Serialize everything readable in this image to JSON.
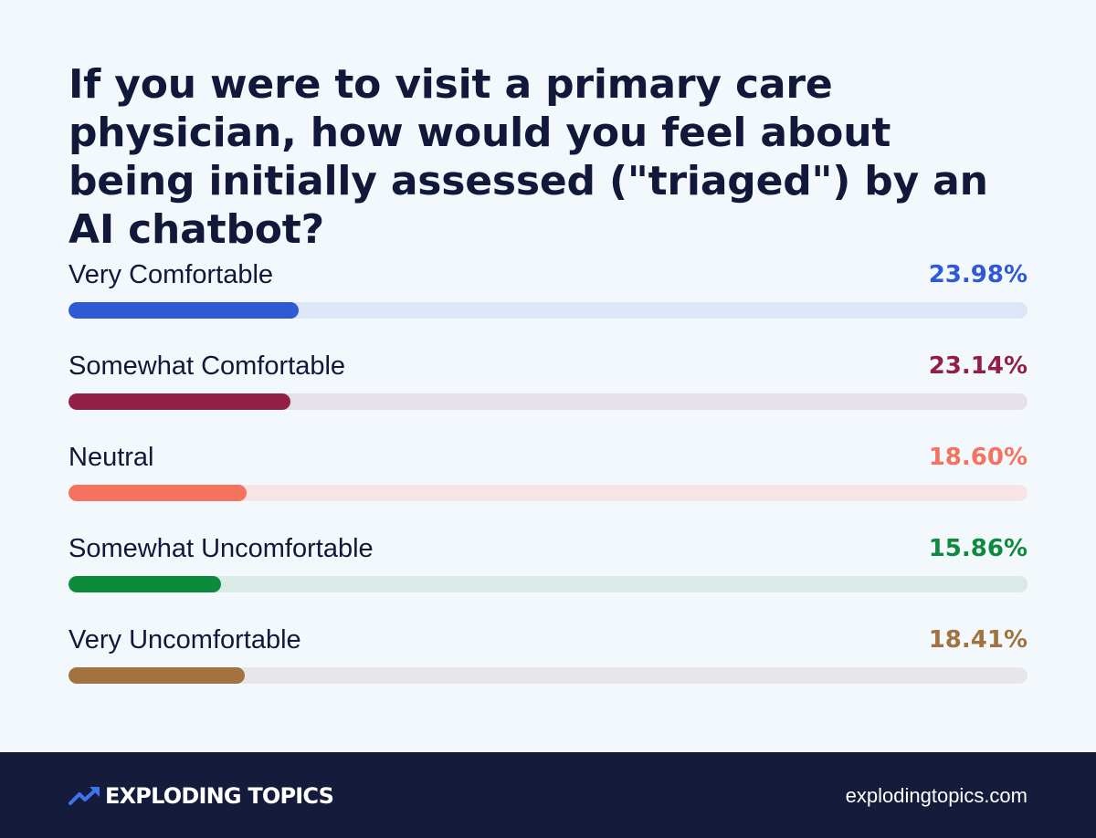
{
  "chart_data": {
    "type": "bar",
    "title": "If you were to visit a primary care physician, how would you feel about being initially assessed (\"triaged\") by an AI chatbot?",
    "xlim": [
      0,
      100
    ],
    "categories": [
      "Very Comfortable",
      "Somewhat Comfortable",
      "Neutral",
      "Somewhat Uncomfortable",
      "Very Uncomfortable"
    ],
    "values": [
      23.98,
      23.14,
      18.6,
      15.86,
      18.41
    ],
    "value_labels": [
      "23.98%",
      "23.14%",
      "18.60%",
      "15.86%",
      "18.41%"
    ],
    "colors": [
      "#2e5ad6",
      "#921f46",
      "#f5725f",
      "#0e8a3d",
      "#a2733f"
    ],
    "track_colors": [
      "#dce6f6",
      "#e5e1e8",
      "#f7e5e6",
      "#d9ebe6",
      "#e7e7ea"
    ]
  },
  "footer": {
    "brand": "EXPLODING TOPICS",
    "brand_icon": "trending-up-arrow-icon",
    "site": "explodingtopics.com",
    "background": "#151b3a"
  }
}
